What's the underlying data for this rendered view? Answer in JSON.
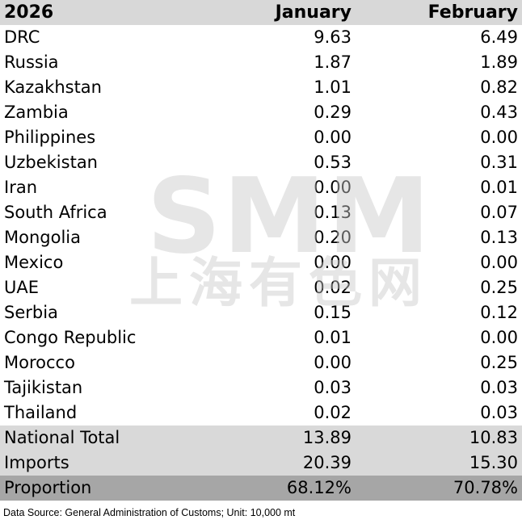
{
  "header": {
    "year": "2026",
    "col1": "January",
    "col2": "February"
  },
  "rows": [
    {
      "country": "DRC",
      "jan": "9.63",
      "feb": "6.49"
    },
    {
      "country": "Russia",
      "jan": "1.87",
      "feb": "1.89"
    },
    {
      "country": "Kazakhstan",
      "jan": "1.01",
      "feb": "0.82"
    },
    {
      "country": "Zambia",
      "jan": "0.29",
      "feb": "0.43"
    },
    {
      "country": "Philippines",
      "jan": "0.00",
      "feb": "0.00"
    },
    {
      "country": "Uzbekistan",
      "jan": "0.53",
      "feb": "0.31"
    },
    {
      "country": "Iran",
      "jan": "0.00",
      "feb": "0.01"
    },
    {
      "country": "South Africa",
      "jan": "0.13",
      "feb": "0.07"
    },
    {
      "country": "Mongolia",
      "jan": "0.20",
      "feb": "0.13"
    },
    {
      "country": "Mexico",
      "jan": "0.00",
      "feb": "0.00"
    },
    {
      "country": "UAE",
      "jan": "0.02",
      "feb": "0.25"
    },
    {
      "country": "Serbia",
      "jan": "0.15",
      "feb": "0.12"
    },
    {
      "country": "Congo Republic",
      "jan": "0.01",
      "feb": "0.00"
    },
    {
      "country": "Morocco",
      "jan": "0.00",
      "feb": "0.25"
    },
    {
      "country": "Tajikistan",
      "jan": "0.03",
      "feb": "0.03"
    },
    {
      "country": "Thailand",
      "jan": "0.02",
      "feb": "0.03"
    }
  ],
  "summary": {
    "total": {
      "label": "National Total",
      "jan": "13.89",
      "feb": "10.83"
    },
    "imports": {
      "label": "Imports",
      "jan": "20.39",
      "feb": "15.30"
    },
    "proportion": {
      "label": "Proportion",
      "jan": "68.12%",
      "feb": "70.78%"
    }
  },
  "watermark": {
    "latin": "SMM",
    "chinese": "上海有色网"
  },
  "source": "Data Source: General Administration of Customs; Unit: 10,000 mt",
  "colors": {
    "header_bg": "#d8d8d8",
    "summary_bg": "#d9d9d9",
    "proportion_bg": "#a6a6a6",
    "watermark": "#c8c8c8"
  }
}
